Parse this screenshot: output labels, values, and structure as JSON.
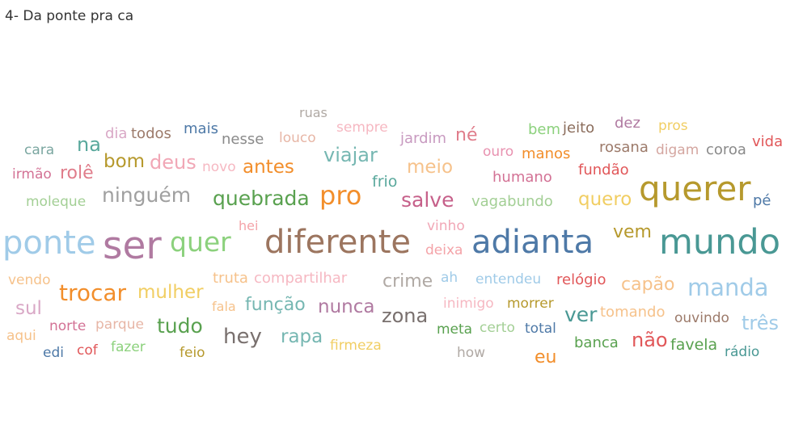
{
  "sheet": {
    "title": "4- Da ponte pra ca"
  },
  "word_cloud": [
    {
      "word": "ruas",
      "color": "#b0a9a4"
    },
    {
      "word": "sempre",
      "color": "#f6b8c2"
    },
    {
      "word": "dia",
      "color": "#d9a8c6"
    },
    {
      "word": "todos",
      "color": "#9c7a6a"
    },
    {
      "word": "mais",
      "color": "#4e79a7"
    },
    {
      "word": "nesse",
      "color": "#8a8a8a"
    },
    {
      "word": "louco",
      "color": "#e7b6a6"
    },
    {
      "word": "jardim",
      "color": "#c89ac0"
    },
    {
      "word": "né",
      "color": "#e07d8b"
    },
    {
      "word": "bem",
      "color": "#8cd17d"
    },
    {
      "word": "jeito",
      "color": "#8b6d5c"
    },
    {
      "word": "dez",
      "color": "#b07aa1"
    },
    {
      "word": "pros",
      "color": "#f1ce63"
    },
    {
      "word": "na",
      "color": "#59a89c"
    },
    {
      "word": "vida",
      "color": "#e15759"
    },
    {
      "word": "cara",
      "color": "#7aa6a0"
    },
    {
      "word": "ouro",
      "color": "#e892b0"
    },
    {
      "word": "manos",
      "color": "#f28e2b"
    },
    {
      "word": "rosana",
      "color": "#9c7a6a"
    },
    {
      "word": "digam",
      "color": "#d4a6a0"
    },
    {
      "word": "coroa",
      "color": "#8a8a8a"
    },
    {
      "word": "viajar",
      "color": "#76b7b2"
    },
    {
      "word": "bom",
      "color": "#b6992d"
    },
    {
      "word": "deus",
      "color": "#f1a7b6"
    },
    {
      "word": "novo",
      "color": "#f6b8c2"
    },
    {
      "word": "antes",
      "color": "#f28e2b"
    },
    {
      "word": "meio",
      "color": "#f6c28b"
    },
    {
      "word": "fundão",
      "color": "#e15759"
    },
    {
      "word": "irmão",
      "color": "#d37295"
    },
    {
      "word": "rolê",
      "color": "#e07d8b"
    },
    {
      "word": "frio",
      "color": "#59a89c"
    },
    {
      "word": "humano",
      "color": "#d37295"
    },
    {
      "word": "ninguém",
      "color": "#a0a0a0"
    },
    {
      "word": "querer",
      "color": "#b6992d"
    },
    {
      "word": "pro",
      "color": "#f28e2b"
    },
    {
      "word": "quebrada",
      "color": "#59a14f"
    },
    {
      "word": "salve",
      "color": "#c6608a"
    },
    {
      "word": "vagabundo",
      "color": "#a3cf95"
    },
    {
      "word": "quero",
      "color": "#f1ce63"
    },
    {
      "word": "pé",
      "color": "#4e79a7"
    },
    {
      "word": "moleque",
      "color": "#a3cf95"
    },
    {
      "word": "hei",
      "color": "#f4a3a8"
    },
    {
      "word": "vinho",
      "color": "#f1a7b6"
    },
    {
      "word": "vem",
      "color": "#b6992d"
    },
    {
      "word": "ponte",
      "color": "#a0cbe8"
    },
    {
      "word": "ser",
      "color": "#b07aa1"
    },
    {
      "word": "quer",
      "color": "#8cd17d"
    },
    {
      "word": "diferente",
      "color": "#9c755f"
    },
    {
      "word": "adianta",
      "color": "#4e79a7"
    },
    {
      "word": "mundo",
      "color": "#499894"
    },
    {
      "word": "deixa",
      "color": "#f4a3a8"
    },
    {
      "word": "trocar",
      "color": "#f28e2b"
    },
    {
      "word": "mulher",
      "color": "#f1ce63"
    },
    {
      "word": "truta",
      "color": "#f6c28b"
    },
    {
      "word": "compartilhar",
      "color": "#f6b8c2"
    },
    {
      "word": "crime",
      "color": "#b0a9a4"
    },
    {
      "word": "ah",
      "color": "#a0cbe8"
    },
    {
      "word": "entendeu",
      "color": "#a0cbe8"
    },
    {
      "word": "relógio",
      "color": "#e15759"
    },
    {
      "word": "capão",
      "color": "#f6c28b"
    },
    {
      "word": "manda",
      "color": "#a0cbe8"
    },
    {
      "word": "vendo",
      "color": "#f6c28b"
    },
    {
      "word": "sul",
      "color": "#d9a8c6"
    },
    {
      "word": "fala",
      "color": "#f6c28b"
    },
    {
      "word": "função",
      "color": "#76b7b2"
    },
    {
      "word": "nunca",
      "color": "#b07aa1"
    },
    {
      "word": "zona",
      "color": "#79706e"
    },
    {
      "word": "inimigo",
      "color": "#f6b8c2"
    },
    {
      "word": "morrer",
      "color": "#b6992d"
    },
    {
      "word": "ver",
      "color": "#499894"
    },
    {
      "word": "tomando",
      "color": "#f6c28b"
    },
    {
      "word": "ouvindo",
      "color": "#9c7a6a"
    },
    {
      "word": "três",
      "color": "#a0cbe8"
    },
    {
      "word": "norte",
      "color": "#d37295"
    },
    {
      "word": "parque",
      "color": "#e7b6a6"
    },
    {
      "word": "tudo",
      "color": "#59a14f"
    },
    {
      "word": "hey",
      "color": "#79706e"
    },
    {
      "word": "rapa",
      "color": "#76b7b2"
    },
    {
      "word": "firmeza",
      "color": "#f1ce63"
    },
    {
      "word": "meta",
      "color": "#59a14f"
    },
    {
      "word": "certo",
      "color": "#a3cf95"
    },
    {
      "word": "total",
      "color": "#4e79a7"
    },
    {
      "word": "banca",
      "color": "#59a14f"
    },
    {
      "word": "não",
      "color": "#e15759"
    },
    {
      "word": "favela",
      "color": "#59a14f"
    },
    {
      "word": "aqui",
      "color": "#f6c28b"
    },
    {
      "word": "edi",
      "color": "#4e79a7"
    },
    {
      "word": "cof",
      "color": "#e15759"
    },
    {
      "word": "fazer",
      "color": "#8cd17d"
    },
    {
      "word": "feio",
      "color": "#b6992d"
    },
    {
      "word": "how",
      "color": "#b0a9a4"
    },
    {
      "word": "eu",
      "color": "#f28e2b"
    },
    {
      "word": "rádio",
      "color": "#499894"
    }
  ]
}
